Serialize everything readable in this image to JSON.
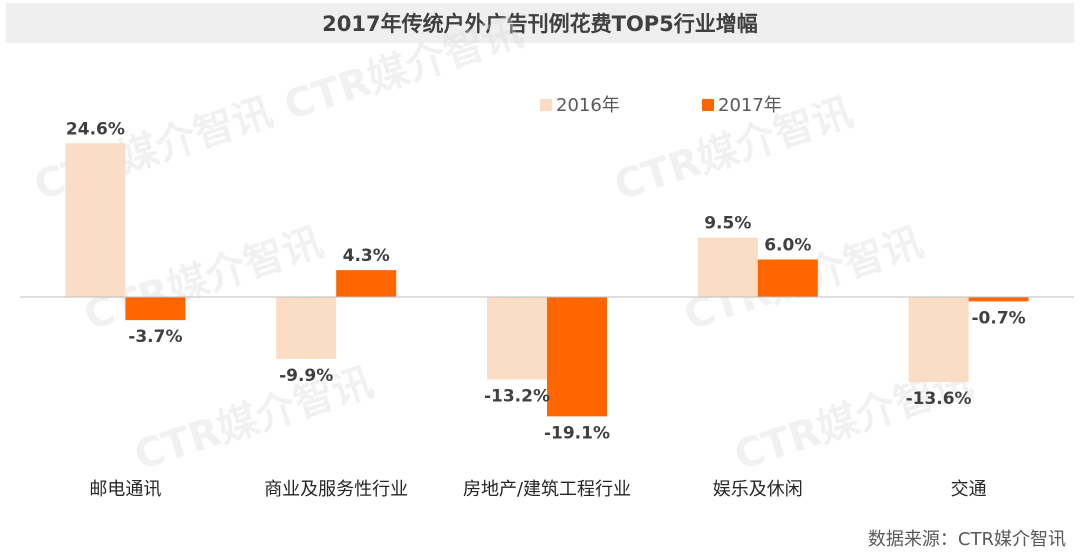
{
  "chart_data": {
    "type": "bar",
    "title": "2017年传统户外广告刊例花费TOP5行业增幅",
    "categories": [
      "邮电通讯",
      "商业及服务性行业",
      "房地产/建筑工程行业",
      "娱乐及休闲",
      "交通"
    ],
    "series": [
      {
        "name": "2016年",
        "color": "#fbdcc4",
        "values": [
          24.6,
          -9.9,
          -13.2,
          9.5,
          -13.6
        ],
        "labels": [
          "24.6%",
          "-9.9%",
          "-13.2%",
          "9.5%",
          "-13.6%"
        ]
      },
      {
        "name": "2017年",
        "color": "#ff6600",
        "values": [
          -3.7,
          4.3,
          -19.1,
          6.0,
          -0.7
        ],
        "labels": [
          "-3.7%",
          "4.3%",
          "-19.1%",
          "6.0%",
          "-0.7%"
        ]
      }
    ],
    "legend_position": "top-right",
    "grid": false,
    "ylim": [
      -25,
      30
    ]
  },
  "watermark": "CTR媒介智讯",
  "source": "数据来源：CTR媒介智讯"
}
